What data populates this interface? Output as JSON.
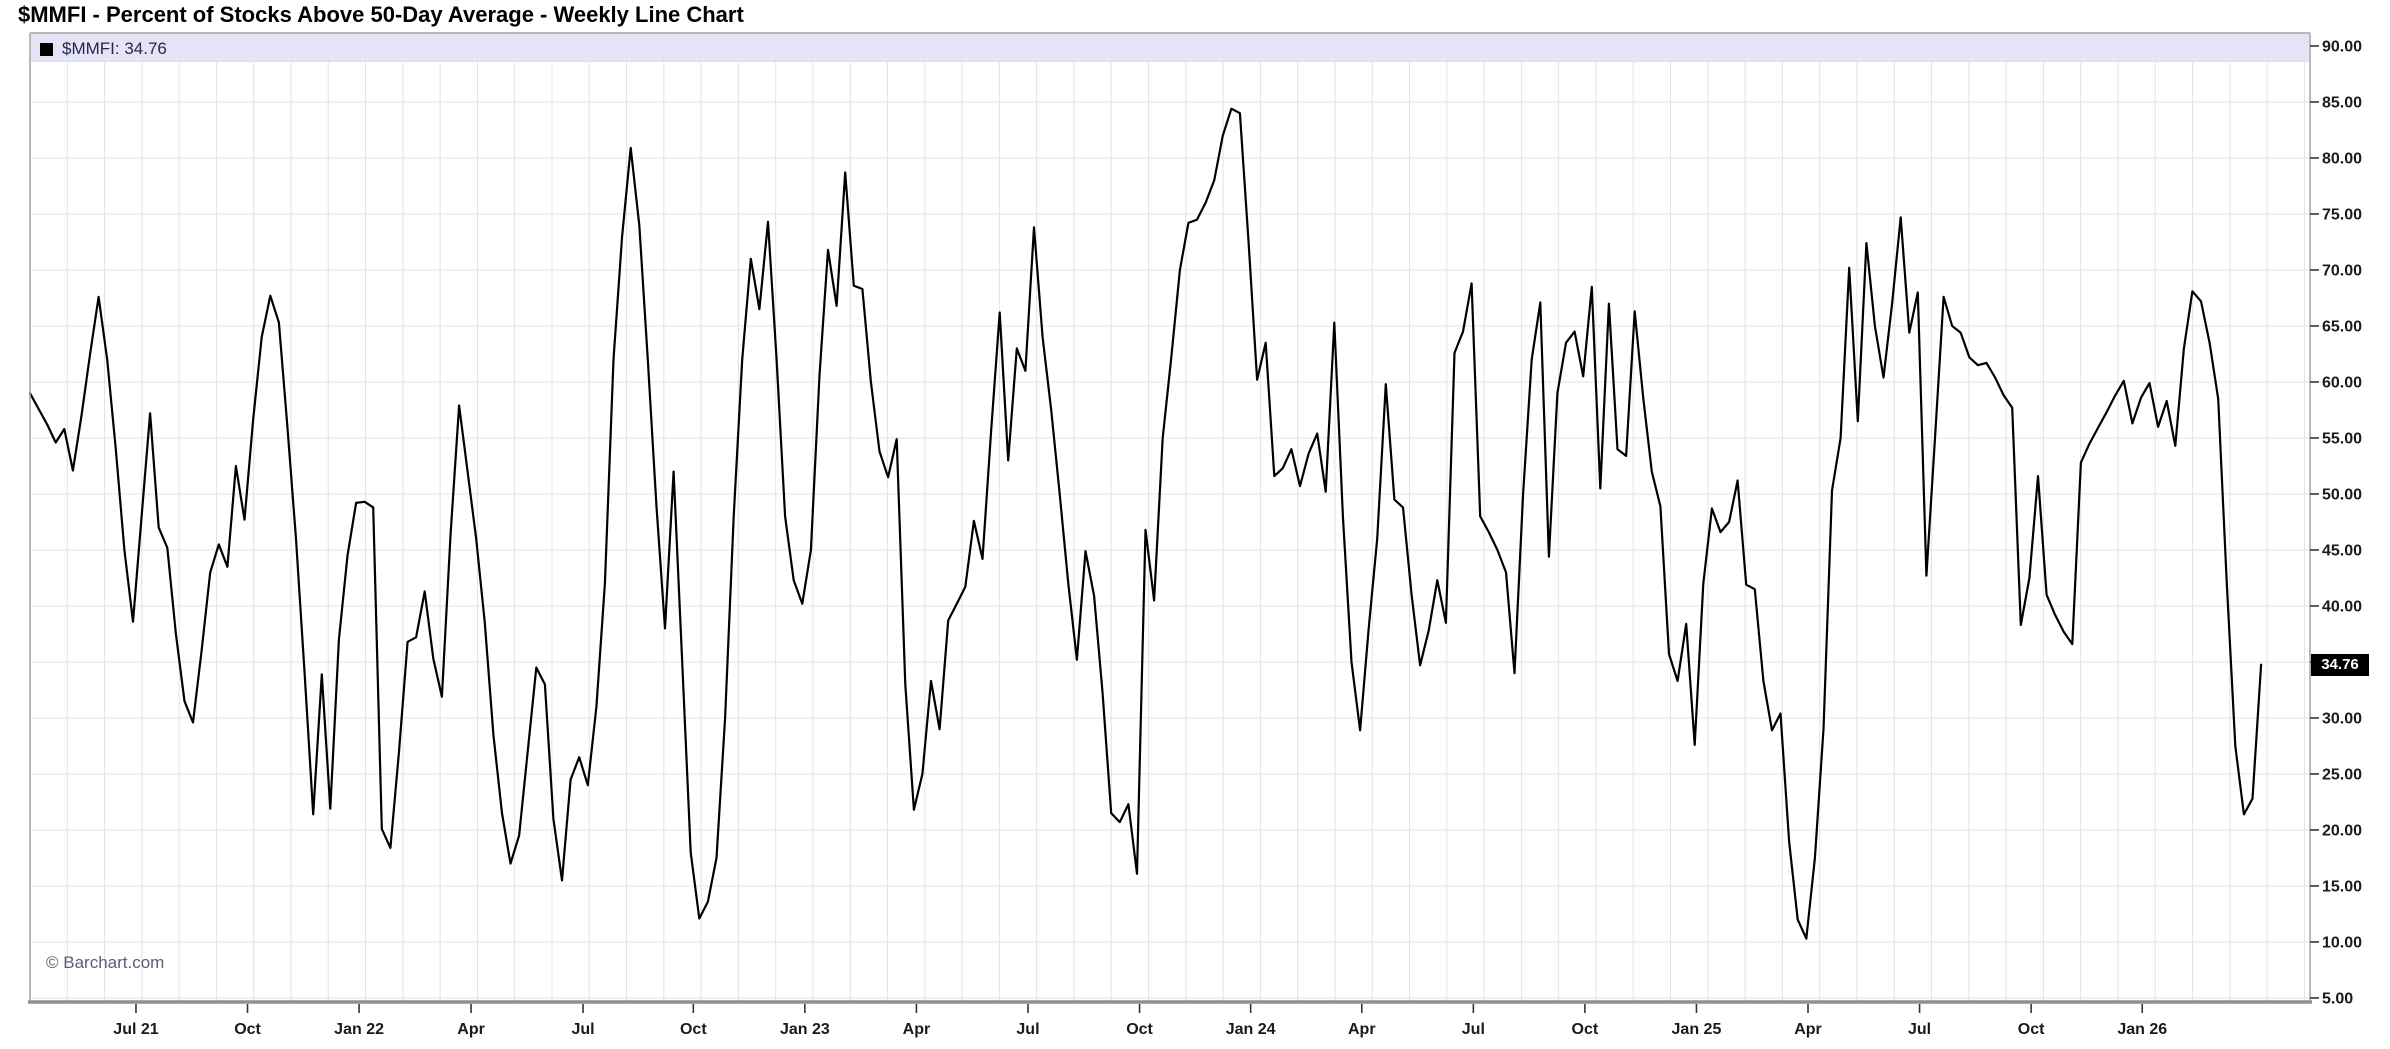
{
  "title": "$MMFI - Percent of Stocks Above 50-Day Average - Weekly Line Chart",
  "legend": {
    "text": "$MMFI: 34.76",
    "series_name": "$MMFI",
    "swatch_color": "#000000"
  },
  "watermark": "© Barchart.com",
  "last_value_badge": {
    "text": "34.76",
    "bg_color": "#000000",
    "text_color": "#ffffff"
  },
  "colors": {
    "background": "#ffffff",
    "line": "#000000",
    "grid": "#e3e3e7",
    "border": "#a2a2a2",
    "bottom_axis": "#8f8f8f",
    "tick": "#333333",
    "axis_label": "#1a1a1a",
    "legend_bar": "#e4e4f6"
  },
  "chart_data": {
    "type": "line",
    "title": "$MMFI - Percent of Stocks Above 50-Day Average - Weekly Line Chart",
    "xlabel": "",
    "ylabel": "",
    "grid": true,
    "legend_position": "top-left",
    "frequency": "weekly",
    "last_value": 34.76,
    "ylim": [
      4.64,
      91.16
    ],
    "y_axis": {
      "ticks": [
        90,
        85,
        80,
        75,
        70,
        65,
        60,
        55,
        50,
        45,
        40,
        35,
        30,
        25,
        20,
        15,
        10,
        5
      ],
      "hidden_labels": [
        35
      ],
      "format_decimals": 2
    },
    "x_axis": {
      "weeks_span": 265.7,
      "month_step_weeks": 4.345,
      "ticks": [
        {
          "label": "Jul 21",
          "week": 12.35
        },
        {
          "label": "Oct",
          "week": 25.35
        },
        {
          "label": "Jan 22",
          "week": 38.35
        },
        {
          "label": "Apr",
          "week": 51.4
        },
        {
          "label": "Jul",
          "week": 64.45
        },
        {
          "label": "Oct",
          "week": 77.3
        },
        {
          "label": "Jan 23",
          "week": 90.3
        },
        {
          "label": "Apr",
          "week": 103.3
        },
        {
          "label": "Jul",
          "week": 116.3
        },
        {
          "label": "Oct",
          "week": 129.3
        },
        {
          "label": "Jan 24",
          "week": 142.25
        },
        {
          "label": "Apr",
          "week": 155.2
        },
        {
          "label": "Jul",
          "week": 168.2
        },
        {
          "label": "Oct",
          "week": 181.2
        },
        {
          "label": "Jan 25",
          "week": 194.2
        },
        {
          "label": "Apr",
          "week": 207.2
        },
        {
          "label": "Jul",
          "week": 220.2
        },
        {
          "label": "Oct",
          "week": 233.2
        },
        {
          "label": "Jan 26",
          "week": 246.15
        }
      ]
    },
    "series": [
      {
        "name": "$MMFI",
        "color": "#000000",
        "values": [
          59.0,
          57.6,
          56.2,
          54.6,
          55.8,
          52.1,
          57.0,
          62.5,
          67.6,
          62.0,
          54.0,
          45.0,
          38.6,
          48.0,
          57.2,
          47.0,
          45.2,
          37.5,
          31.5,
          29.6,
          36.0,
          43.0,
          45.5,
          43.5,
          52.5,
          47.7,
          56.6,
          64.0,
          67.7,
          65.3,
          56.0,
          46.0,
          34.0,
          21.4,
          33.9,
          21.9,
          37.0,
          44.5,
          49.2,
          49.3,
          48.8,
          20.1,
          18.4,
          27.0,
          36.8,
          37.2,
          41.3,
          35.3,
          31.9,
          46.3,
          57.9,
          52.0,
          46.0,
          38.5,
          28.5,
          21.5,
          17.0,
          19.5,
          27.0,
          34.5,
          33.0,
          21.0,
          15.5,
          24.5,
          26.5,
          24.0,
          31.0,
          42.0,
          62.0,
          73.0,
          80.9,
          74.0,
          62.0,
          49.0,
          38.0,
          52.0,
          35.0,
          18.0,
          12.1,
          13.6,
          17.5,
          30.0,
          48.0,
          62.0,
          71.0,
          66.5,
          74.3,
          62.0,
          48.0,
          42.3,
          40.2,
          45.0,
          60.6,
          71.8,
          66.8,
          78.7,
          68.6,
          68.3,
          60.0,
          53.8,
          51.5,
          54.9,
          33.0,
          21.8,
          25.0,
          33.3,
          29.0,
          38.7,
          40.2,
          41.7,
          47.6,
          44.2,
          55.6,
          66.2,
          53.0,
          63.0,
          61.0,
          73.8,
          64.0,
          57.5,
          50.0,
          42.0,
          35.2,
          44.9,
          40.9,
          32.2,
          21.5,
          20.7,
          22.3,
          16.1,
          46.8,
          40.5,
          55.0,
          62.2,
          70.0,
          74.2,
          74.5,
          76.0,
          78.0,
          82.0,
          84.4,
          84.0,
          72.6,
          60.2,
          63.5,
          51.6,
          52.3,
          54.0,
          50.7,
          53.6,
          55.4,
          50.2,
          65.3,
          48.0,
          35.0,
          28.9,
          38.0,
          46.0,
          59.8,
          49.5,
          48.8,
          41.0,
          34.7,
          37.8,
          42.3,
          38.5,
          62.6,
          64.5,
          68.8,
          48.0,
          46.6,
          45.0,
          43.0,
          34.0,
          50.0,
          62.0,
          67.1,
          44.4,
          59.0,
          63.5,
          64.5,
          60.5,
          68.5,
          50.5,
          67.0,
          54.0,
          53.4,
          66.3,
          58.6,
          52.0,
          48.9,
          35.7,
          33.3,
          38.4,
          27.6,
          42.0,
          48.7,
          46.6,
          47.5,
          51.2,
          41.9,
          41.5,
          33.3,
          28.9,
          30.4,
          19.0,
          12.0,
          10.3,
          17.5,
          29.0,
          50.3,
          55.0,
          70.2,
          56.5,
          72.4,
          65.0,
          60.4,
          67.0,
          74.7,
          64.4,
          68.0,
          42.7,
          55.0,
          67.6,
          65.0,
          64.4,
          62.2,
          61.5,
          61.7,
          60.4,
          58.8,
          57.7,
          38.3,
          42.5,
          51.6,
          41.0,
          39.2,
          37.7,
          36.6,
          52.8,
          54.5,
          55.9,
          57.3,
          58.8,
          60.1,
          56.3,
          58.6,
          59.9,
          56.0,
          58.3,
          54.3,
          63.0,
          68.1,
          67.2,
          63.5,
          58.5,
          42.0,
          27.5,
          21.4,
          22.8,
          34.76
        ]
      }
    ]
  }
}
